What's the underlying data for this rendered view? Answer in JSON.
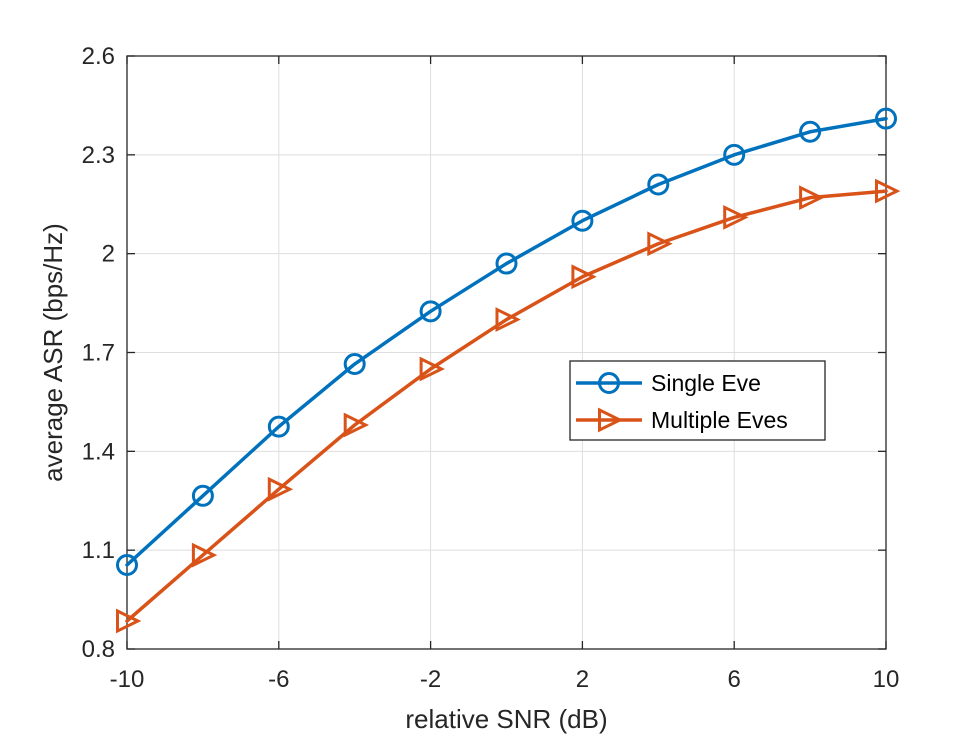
{
  "chart_data": {
    "type": "line",
    "xlabel": "relative SNR (dB)",
    "ylabel": "average ASR (bps/Hz)",
    "xlim": [
      -10,
      10
    ],
    "ylim": [
      0.8,
      2.6
    ],
    "xticks": [
      -10,
      -6,
      -2,
      2,
      6,
      10
    ],
    "xtick_labels": [
      "-10",
      "-6",
      "-2",
      "2",
      "6",
      "10"
    ],
    "yticks": [
      0.8,
      1.1,
      1.4,
      1.7,
      2,
      2.3,
      2.6
    ],
    "ytick_labels": [
      "0.8",
      "1.1",
      "1.4",
      "1.7",
      "2",
      "2.3",
      "2.6"
    ],
    "grid": true,
    "legend_position": "center-right",
    "x": [
      -10,
      -8,
      -6,
      -4,
      -2,
      0,
      2,
      4,
      6,
      8,
      10
    ],
    "series": [
      {
        "name": "Single Eve",
        "color": "#0072BD",
        "marker": "circle",
        "values": [
          1.055,
          1.265,
          1.475,
          1.665,
          1.825,
          1.97,
          2.1,
          2.21,
          2.3,
          2.37,
          2.41
        ]
      },
      {
        "name": "Multiple Eves",
        "color": "#D95319",
        "marker": "triangle-right",
        "values": [
          0.885,
          1.085,
          1.285,
          1.48,
          1.65,
          1.8,
          1.93,
          2.03,
          2.11,
          2.17,
          2.19
        ]
      }
    ]
  }
}
